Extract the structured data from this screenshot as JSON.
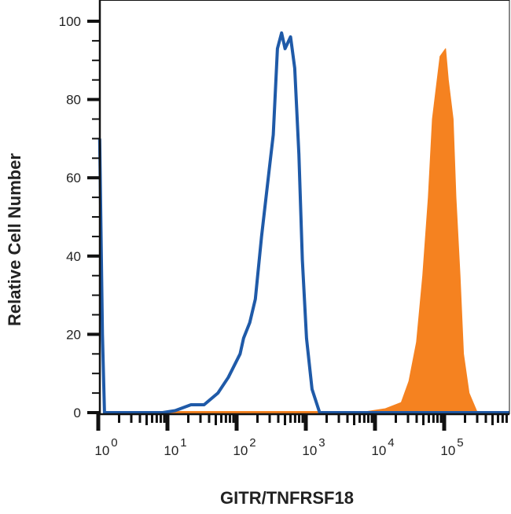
{
  "chart_data": {
    "type": "area",
    "title": "",
    "xlabel": "GITR/TNFRSF18",
    "ylabel": "Relative Cell Number",
    "x_scale": "log10",
    "xlim_log10": [
      0,
      5.94
    ],
    "ylim": [
      0,
      100
    ],
    "grid": false,
    "x_ticks": [
      {
        "base": "10",
        "exp": "0",
        "log10": 0
      },
      {
        "base": "10",
        "exp": "1",
        "log10": 1
      },
      {
        "base": "10",
        "exp": "2",
        "log10": 2
      },
      {
        "base": "10",
        "exp": "3",
        "log10": 3
      },
      {
        "base": "10",
        "exp": "4",
        "log10": 4
      },
      {
        "base": "10",
        "exp": "5",
        "log10": 5
      }
    ],
    "y_ticks": [
      "0",
      "20",
      "40",
      "60",
      "80",
      "100"
    ],
    "series": [
      {
        "style": "line",
        "color": "#1f5aa8",
        "x_log10": [
          0.02,
          0.06,
          0.09,
          0.93,
          1.11,
          1.34,
          1.53,
          1.73,
          1.88,
          2.05,
          2.1,
          2.19,
          2.27,
          2.36,
          2.47,
          2.53,
          2.59,
          2.65,
          2.7,
          2.78,
          2.84,
          2.9,
          2.95,
          3.01,
          3.09,
          3.2,
          5.94
        ],
        "y": [
          70,
          20,
          0,
          0,
          0.5,
          2,
          2,
          5,
          9,
          15,
          19,
          23,
          29,
          45,
          62,
          71,
          93,
          97,
          93,
          96,
          88,
          66,
          39,
          19,
          6,
          0,
          0
        ]
      },
      {
        "style": "filled",
        "color": "#f58220",
        "x_log10": [
          1.0,
          3.1,
          3.89,
          4.15,
          4.38,
          4.49,
          4.6,
          4.69,
          4.77,
          4.83,
          4.94,
          5.02,
          5.06,
          5.13,
          5.17,
          5.23,
          5.28,
          5.36,
          5.48
        ],
        "y": [
          0.3,
          0.3,
          0.3,
          1,
          2.6,
          8,
          18,
          35,
          55,
          75,
          91,
          93,
          85,
          75,
          55,
          35,
          15,
          5,
          0
        ]
      }
    ]
  }
}
